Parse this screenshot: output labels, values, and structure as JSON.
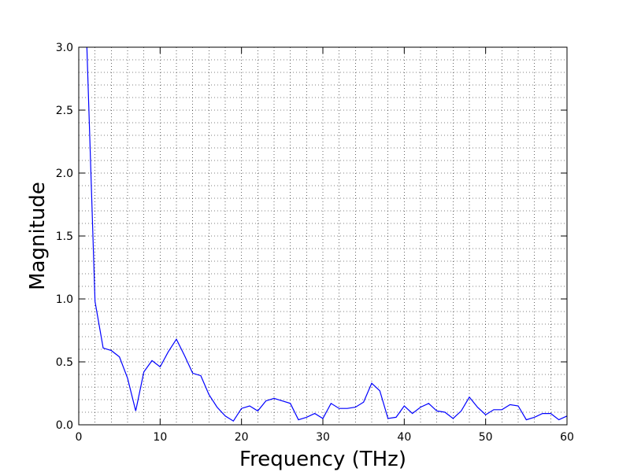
{
  "chart_data": {
    "type": "line",
    "xlabel": "Frequency (THz)",
    "ylabel": "Magnitude",
    "xlim": [
      0,
      60
    ],
    "ylim": [
      0,
      3.0
    ],
    "xticks": [
      0,
      10,
      20,
      30,
      40,
      50,
      60
    ],
    "xtick_labels": [
      "0",
      "10",
      "20",
      "30",
      "40",
      "50",
      "60"
    ],
    "yticks": [
      0,
      0.5,
      1.0,
      1.5,
      2.0,
      2.5,
      3.0
    ],
    "ytick_labels": [
      "0.0",
      "0.5",
      "1.0",
      "1.5",
      "2.0",
      "2.5",
      "3.0"
    ],
    "grid": true,
    "grid_minor": true,
    "line_color": "#0000ff",
    "series": [
      {
        "x": [
          1,
          2,
          3,
          4,
          5,
          6,
          7,
          8,
          9,
          10,
          11,
          12,
          13,
          14,
          15,
          16,
          17,
          18,
          19,
          20,
          21,
          22,
          23,
          24,
          25,
          26,
          27,
          28,
          29,
          30,
          31,
          32,
          33,
          34,
          35,
          36,
          37,
          38,
          39,
          40,
          41,
          42,
          43,
          44,
          45,
          46,
          47,
          48,
          49,
          50,
          51,
          52,
          53,
          54,
          55,
          56,
          57,
          58,
          59,
          60
        ],
        "values": [
          3.0,
          0.98,
          0.61,
          0.59,
          0.54,
          0.37,
          0.11,
          0.42,
          0.51,
          0.46,
          0.58,
          0.68,
          0.55,
          0.41,
          0.39,
          0.24,
          0.14,
          0.07,
          0.03,
          0.13,
          0.15,
          0.11,
          0.19,
          0.21,
          0.19,
          0.17,
          0.04,
          0.06,
          0.09,
          0.05,
          0.17,
          0.13,
          0.13,
          0.14,
          0.18,
          0.33,
          0.27,
          0.05,
          0.06,
          0.15,
          0.09,
          0.14,
          0.17,
          0.11,
          0.1,
          0.05,
          0.11,
          0.22,
          0.14,
          0.08,
          0.12,
          0.12,
          0.16,
          0.15,
          0.04,
          0.06,
          0.09,
          0.09,
          0.04,
          0.07
        ]
      }
    ]
  }
}
